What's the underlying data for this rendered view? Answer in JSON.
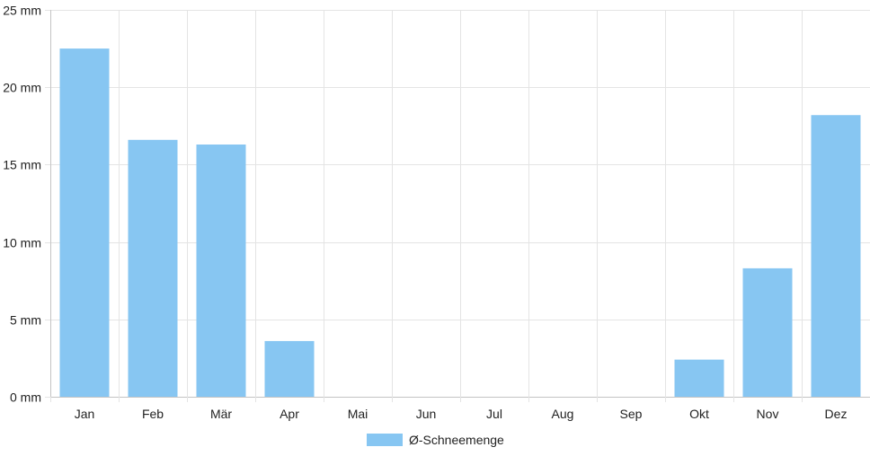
{
  "chart_data": {
    "type": "bar",
    "categories": [
      "Jan",
      "Feb",
      "Mär",
      "Apr",
      "Mai",
      "Jun",
      "Jul",
      "Aug",
      "Sep",
      "Okt",
      "Nov",
      "Dez"
    ],
    "series": [
      {
        "name": "Ø-Schneemenge",
        "values": [
          22.5,
          16.6,
          16.3,
          3.6,
          0,
          0,
          0,
          0,
          0,
          2.4,
          8.3,
          18.2
        ],
        "color": "#87c6f2"
      }
    ],
    "y_ticks": [
      "0 mm",
      "5 mm",
      "10 mm",
      "15 mm",
      "20 mm",
      "25 mm"
    ],
    "ylim": [
      0,
      25
    ],
    "y_unit": "mm",
    "grid": true,
    "legend_position": "bottom-center",
    "title": "",
    "xlabel": "",
    "ylabel": ""
  }
}
